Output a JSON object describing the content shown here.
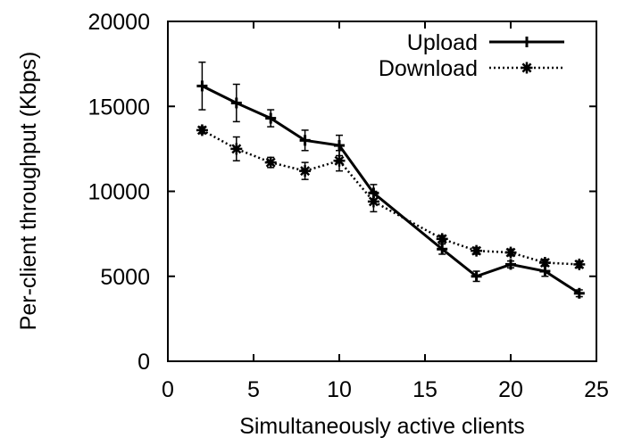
{
  "chart_data": {
    "type": "line",
    "title": "",
    "xlabel": "Simultaneously active clients",
    "ylabel": "Per-client throughput (Kbps)",
    "xlim": [
      0,
      25
    ],
    "ylim": [
      0,
      20000
    ],
    "xticks": [
      0,
      5,
      10,
      15,
      20,
      25
    ],
    "yticks": [
      0,
      5000,
      10000,
      15000,
      20000
    ],
    "xtick_labels": [
      "0",
      "5",
      "10",
      "15",
      "20",
      "25"
    ],
    "ytick_labels": [
      "0",
      "5000",
      "10000",
      "15000",
      "20000"
    ],
    "grid": false,
    "legend_position": "top-right",
    "series": [
      {
        "name": "Upload",
        "line_style": "solid",
        "marker": "plus",
        "x": [
          2,
          4,
          6,
          8,
          10,
          12,
          16,
          18,
          20,
          22,
          24
        ],
        "y": [
          16200,
          15200,
          14300,
          13000,
          12700,
          9900,
          6600,
          5000,
          5700,
          5300,
          4000
        ],
        "error": [
          1400,
          1100,
          500,
          600,
          600,
          500,
          300,
          300,
          200,
          300,
          200
        ]
      },
      {
        "name": "Download",
        "line_style": "dotted",
        "marker": "asterisk",
        "x": [
          2,
          4,
          6,
          8,
          10,
          12,
          16,
          18,
          20,
          22,
          24
        ],
        "y": [
          13600,
          12500,
          11700,
          11200,
          11800,
          9400,
          7200,
          6500,
          6400,
          5800,
          5700
        ],
        "error": [
          200,
          700,
          300,
          500,
          600,
          600,
          200,
          200,
          200,
          200,
          200
        ]
      }
    ]
  }
}
